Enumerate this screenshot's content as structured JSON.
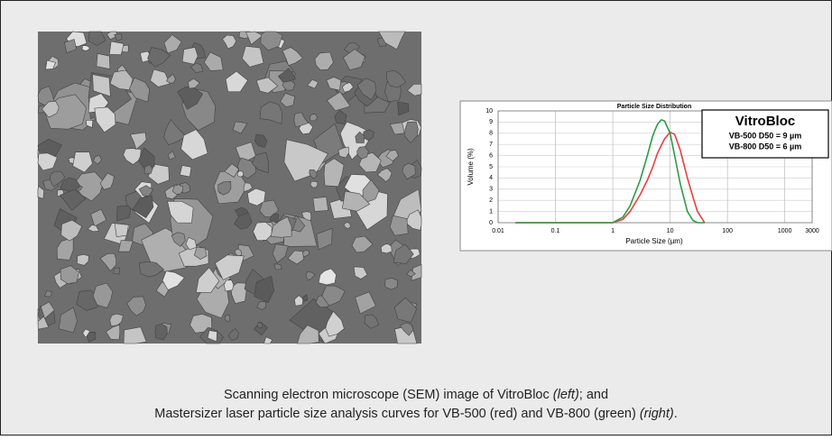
{
  "chart_data": {
    "type": "line",
    "title": "Particle Size Distribution",
    "x_label": "Particle Size (µm)",
    "y_label": "Volume (%)",
    "log_x": true,
    "grid": true,
    "xlim": [
      0.01,
      3000
    ],
    "xticks": [
      0.01,
      0.1,
      1,
      10,
      100,
      1000,
      3000
    ],
    "ylim": [
      0,
      10
    ],
    "yticks": [
      0,
      1,
      2,
      3,
      4,
      5,
      6,
      7,
      8,
      9,
      10
    ],
    "x": [
      0.02,
      1,
      1.5,
      2,
      3,
      4,
      5,
      6,
      7,
      8,
      10,
      12,
      15,
      20,
      25,
      30,
      40
    ],
    "series": [
      {
        "color": "#e8403f",
        "values": [
          0,
          0,
          0.3,
          1,
          2.5,
          3.8,
          5,
          6.2,
          6.9,
          7.5,
          8.1,
          7.9,
          6.5,
          4,
          2.3,
          1,
          0
        ]
      },
      {
        "color": "#2f9a45",
        "values": [
          0,
          0,
          0.5,
          1.5,
          3.8,
          6,
          7.8,
          8.8,
          9.2,
          9.1,
          8,
          6,
          3.5,
          1,
          0.2,
          0,
          0
        ]
      }
    ],
    "legend_title": "VitroBloc",
    "legend_entries": [
      "VB-500 D50 = 9 µm",
      "VB-800 D50 = 6 µm"
    ]
  },
  "caption": {
    "line1": [
      "Scanning electron microscope (SEM) image of VitroBloc ",
      "(left)",
      "; and"
    ],
    "line2": [
      "Mastersizer laser particle size analysis curves for VB-500 (red) and VB-800 (green) ",
      "(right)",
      "."
    ]
  }
}
